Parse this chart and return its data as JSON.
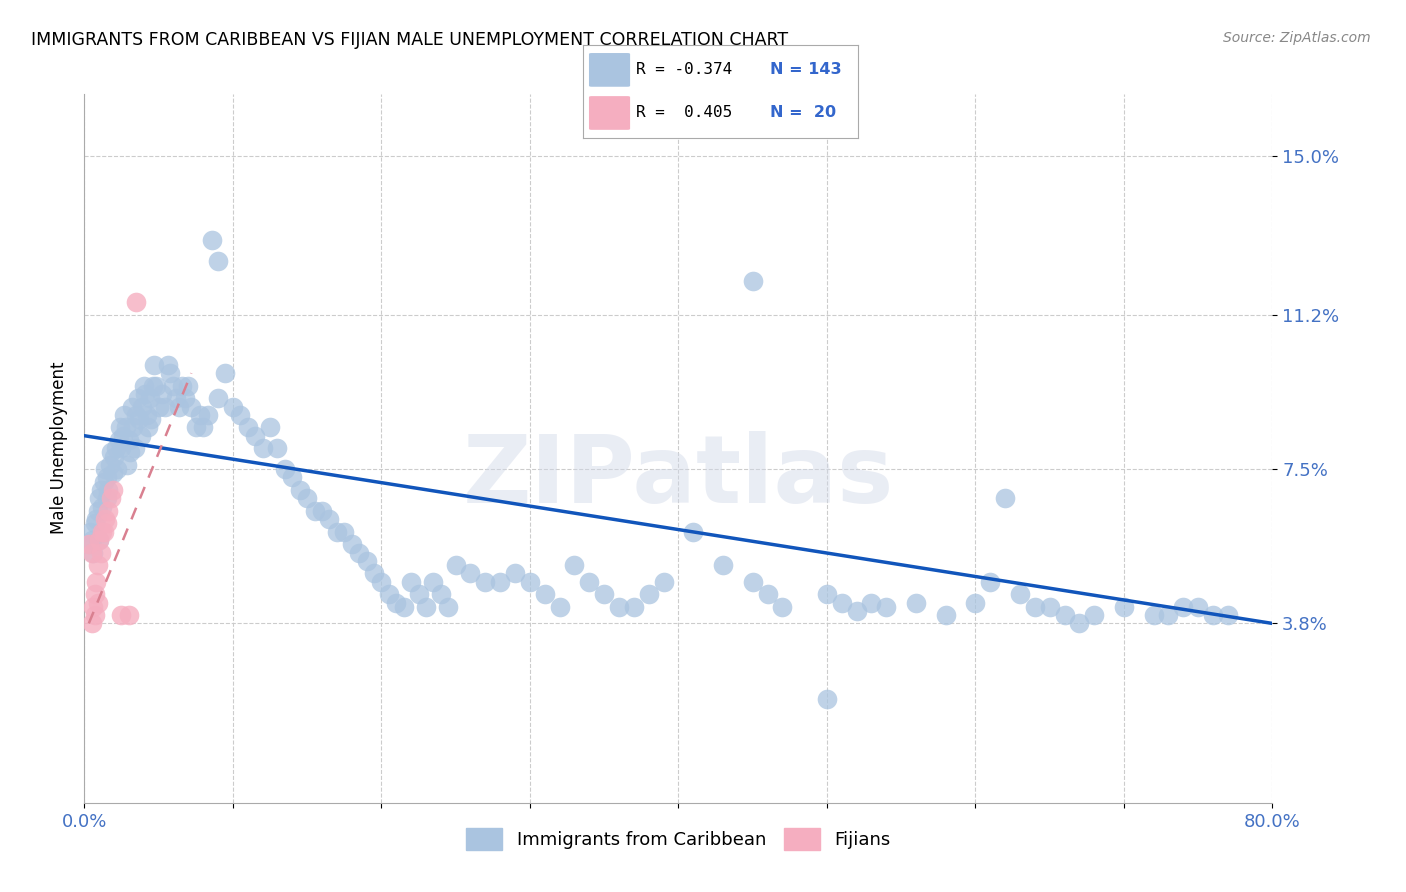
{
  "title": "IMMIGRANTS FROM CARIBBEAN VS FIJIAN MALE UNEMPLOYMENT CORRELATION CHART",
  "source": "Source: ZipAtlas.com",
  "ylabel": "Male Unemployment",
  "yticks": [
    0.038,
    0.075,
    0.112,
    0.15
  ],
  "ytick_labels": [
    "3.8%",
    "7.5%",
    "11.2%",
    "15.0%"
  ],
  "xlim": [
    0.0,
    0.8
  ],
  "ylim": [
    -0.005,
    0.165
  ],
  "color_blue": "#aac4e0",
  "color_pink": "#f5aec0",
  "color_line_blue": "#1155bb",
  "color_line_pink": "#d98090",
  "watermark_text": "ZIPatlas",
  "blue_line_x": [
    0.0,
    0.8
  ],
  "blue_line_y": [
    0.083,
    0.038
  ],
  "pink_line_x": [
    0.003,
    0.072
  ],
  "pink_line_y": [
    0.038,
    0.098
  ],
  "scatter_blue": [
    [
      0.003,
      0.057
    ],
    [
      0.004,
      0.06
    ],
    [
      0.005,
      0.058
    ],
    [
      0.006,
      0.055
    ],
    [
      0.007,
      0.062
    ],
    [
      0.008,
      0.063
    ],
    [
      0.009,
      0.065
    ],
    [
      0.01,
      0.058
    ],
    [
      0.01,
      0.068
    ],
    [
      0.011,
      0.07
    ],
    [
      0.012,
      0.066
    ],
    [
      0.013,
      0.072
    ],
    [
      0.014,
      0.075
    ],
    [
      0.015,
      0.068
    ],
    [
      0.015,
      0.073
    ],
    [
      0.016,
      0.07
    ],
    [
      0.017,
      0.076
    ],
    [
      0.018,
      0.079
    ],
    [
      0.019,
      0.074
    ],
    [
      0.02,
      0.078
    ],
    [
      0.021,
      0.08
    ],
    [
      0.022,
      0.075
    ],
    [
      0.023,
      0.082
    ],
    [
      0.024,
      0.085
    ],
    [
      0.025,
      0.08
    ],
    [
      0.026,
      0.083
    ],
    [
      0.027,
      0.088
    ],
    [
      0.028,
      0.085
    ],
    [
      0.029,
      0.076
    ],
    [
      0.03,
      0.082
    ],
    [
      0.031,
      0.079
    ],
    [
      0.032,
      0.09
    ],
    [
      0.033,
      0.085
    ],
    [
      0.034,
      0.08
    ],
    [
      0.035,
      0.088
    ],
    [
      0.036,
      0.092
    ],
    [
      0.037,
      0.087
    ],
    [
      0.038,
      0.083
    ],
    [
      0.039,
      0.09
    ],
    [
      0.04,
      0.095
    ],
    [
      0.041,
      0.093
    ],
    [
      0.042,
      0.088
    ],
    [
      0.043,
      0.085
    ],
    [
      0.044,
      0.092
    ],
    [
      0.045,
      0.087
    ],
    [
      0.046,
      0.095
    ],
    [
      0.047,
      0.1
    ],
    [
      0.048,
      0.095
    ],
    [
      0.05,
      0.09
    ],
    [
      0.052,
      0.093
    ],
    [
      0.054,
      0.09
    ],
    [
      0.056,
      0.1
    ],
    [
      0.058,
      0.098
    ],
    [
      0.06,
      0.095
    ],
    [
      0.062,
      0.092
    ],
    [
      0.064,
      0.09
    ],
    [
      0.066,
      0.095
    ],
    [
      0.068,
      0.092
    ],
    [
      0.07,
      0.095
    ],
    [
      0.072,
      0.09
    ],
    [
      0.075,
      0.085
    ],
    [
      0.078,
      0.088
    ],
    [
      0.08,
      0.085
    ],
    [
      0.083,
      0.088
    ],
    [
      0.086,
      0.13
    ],
    [
      0.09,
      0.125
    ],
    [
      0.09,
      0.092
    ],
    [
      0.095,
      0.098
    ],
    [
      0.1,
      0.09
    ],
    [
      0.105,
      0.088
    ],
    [
      0.11,
      0.085
    ],
    [
      0.115,
      0.083
    ],
    [
      0.12,
      0.08
    ],
    [
      0.125,
      0.085
    ],
    [
      0.13,
      0.08
    ],
    [
      0.135,
      0.075
    ],
    [
      0.14,
      0.073
    ],
    [
      0.145,
      0.07
    ],
    [
      0.15,
      0.068
    ],
    [
      0.155,
      0.065
    ],
    [
      0.16,
      0.065
    ],
    [
      0.165,
      0.063
    ],
    [
      0.17,
      0.06
    ],
    [
      0.175,
      0.06
    ],
    [
      0.18,
      0.057
    ],
    [
      0.185,
      0.055
    ],
    [
      0.19,
      0.053
    ],
    [
      0.195,
      0.05
    ],
    [
      0.2,
      0.048
    ],
    [
      0.205,
      0.045
    ],
    [
      0.21,
      0.043
    ],
    [
      0.215,
      0.042
    ],
    [
      0.22,
      0.048
    ],
    [
      0.225,
      0.045
    ],
    [
      0.23,
      0.042
    ],
    [
      0.235,
      0.048
    ],
    [
      0.24,
      0.045
    ],
    [
      0.245,
      0.042
    ],
    [
      0.25,
      0.052
    ],
    [
      0.26,
      0.05
    ],
    [
      0.27,
      0.048
    ],
    [
      0.28,
      0.048
    ],
    [
      0.29,
      0.05
    ],
    [
      0.3,
      0.048
    ],
    [
      0.31,
      0.045
    ],
    [
      0.32,
      0.042
    ],
    [
      0.33,
      0.052
    ],
    [
      0.34,
      0.048
    ],
    [
      0.35,
      0.045
    ],
    [
      0.36,
      0.042
    ],
    [
      0.37,
      0.042
    ],
    [
      0.38,
      0.045
    ],
    [
      0.39,
      0.048
    ],
    [
      0.41,
      0.06
    ],
    [
      0.43,
      0.052
    ],
    [
      0.45,
      0.048
    ],
    [
      0.46,
      0.045
    ],
    [
      0.47,
      0.042
    ],
    [
      0.45,
      0.12
    ],
    [
      0.5,
      0.045
    ],
    [
      0.51,
      0.043
    ],
    [
      0.52,
      0.041
    ],
    [
      0.53,
      0.043
    ],
    [
      0.54,
      0.042
    ],
    [
      0.56,
      0.043
    ],
    [
      0.58,
      0.04
    ],
    [
      0.6,
      0.043
    ],
    [
      0.5,
      0.02
    ],
    [
      0.61,
      0.048
    ],
    [
      0.63,
      0.045
    ],
    [
      0.64,
      0.042
    ],
    [
      0.65,
      0.042
    ],
    [
      0.66,
      0.04
    ],
    [
      0.67,
      0.038
    ],
    [
      0.62,
      0.068
    ],
    [
      0.68,
      0.04
    ],
    [
      0.7,
      0.042
    ],
    [
      0.72,
      0.04
    ],
    [
      0.73,
      0.04
    ],
    [
      0.74,
      0.042
    ],
    [
      0.75,
      0.042
    ],
    [
      0.76,
      0.04
    ],
    [
      0.77,
      0.04
    ]
  ],
  "scatter_pink": [
    [
      0.003,
      0.057
    ],
    [
      0.005,
      0.055
    ],
    [
      0.006,
      0.042
    ],
    [
      0.007,
      0.045
    ],
    [
      0.008,
      0.048
    ],
    [
      0.009,
      0.052
    ],
    [
      0.01,
      0.058
    ],
    [
      0.011,
      0.055
    ],
    [
      0.012,
      0.06
    ],
    [
      0.013,
      0.06
    ],
    [
      0.014,
      0.063
    ],
    [
      0.015,
      0.062
    ],
    [
      0.016,
      0.065
    ],
    [
      0.018,
      0.068
    ],
    [
      0.019,
      0.07
    ],
    [
      0.005,
      0.038
    ],
    [
      0.007,
      0.04
    ],
    [
      0.009,
      0.043
    ],
    [
      0.025,
      0.04
    ],
    [
      0.03,
      0.04
    ],
    [
      0.035,
      0.115
    ]
  ]
}
